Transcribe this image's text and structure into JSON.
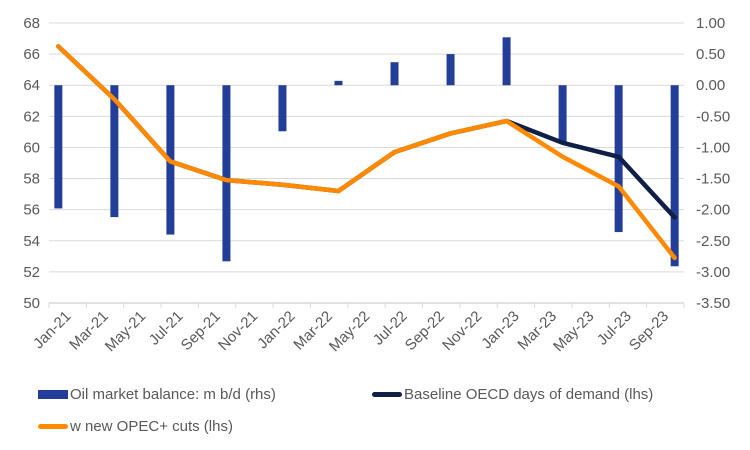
{
  "chart_data": {
    "type": "bar+line",
    "title": "",
    "x_tick_labels": [
      "Jan-21",
      "Mar-21",
      "May-21",
      "Jul-21",
      "Sep-21",
      "Nov-21",
      "Jan-22",
      "Mar-22",
      "May-22",
      "Jul-22",
      "Sep-22",
      "Nov-22",
      "Jan-23",
      "Mar-23",
      "May-23",
      "Jul-23",
      "Sep-23"
    ],
    "x_months_span": [
      "Jan-21",
      "Oct-23"
    ],
    "points_x": [
      "Jan-21",
      "Apr-21",
      "Jul-21",
      "Oct-21",
      "Jan-22",
      "Apr-22",
      "Jul-22",
      "Oct-22",
      "Jan-23",
      "Apr-23",
      "Jul-23",
      "Oct-23"
    ],
    "y_left": {
      "min": 50,
      "max": 68,
      "step": 2,
      "tick_labels": [
        "68",
        "66",
        "64",
        "62",
        "60",
        "58",
        "56",
        "54",
        "52",
        "50"
      ]
    },
    "y_right": {
      "min": -3.5,
      "max": 1.0,
      "step": 0.5,
      "tick_labels": [
        "1.00",
        "0.50",
        "0.00",
        "-0.50",
        "-1.00",
        "-1.50",
        "-2.00",
        "-2.50",
        "-3.00",
        "-3.50"
      ]
    },
    "grid": true,
    "series": [
      {
        "name": "Oil market balance: m b/d (rhs)",
        "kind": "bar",
        "axis": "right",
        "color": "#233E99",
        "values": [
          -1.98,
          -2.12,
          -2.4,
          -2.83,
          -0.74,
          0.07,
          0.37,
          0.5,
          0.77,
          -0.92,
          -2.36,
          -2.91
        ]
      },
      {
        "name": "Baseline OECD days of demand (lhs)",
        "kind": "line",
        "axis": "left",
        "color": "#0F1F45",
        "values": [
          66.5,
          63.1,
          59.1,
          57.9,
          57.6,
          57.2,
          59.7,
          60.9,
          61.7,
          60.3,
          59.4,
          55.5
        ]
      },
      {
        "name": "w new OPEC+ cuts (lhs)",
        "kind": "line",
        "axis": "left",
        "color": "#FF8A00",
        "values": [
          66.5,
          63.1,
          59.1,
          57.9,
          57.6,
          57.2,
          59.7,
          60.9,
          61.7,
          59.4,
          57.5,
          52.9
        ]
      }
    ],
    "legend_position": "bottom"
  },
  "legend": [
    {
      "label": "Oil market balance: m b/d (rhs)",
      "kind": "bar",
      "color": "#233E99"
    },
    {
      "label": "Baseline OECD days of demand (lhs)",
      "kind": "line",
      "color": "#0F1F45"
    },
    {
      "label": "w new OPEC+ cuts (lhs)",
      "kind": "line",
      "color": "#FF8A00"
    }
  ]
}
